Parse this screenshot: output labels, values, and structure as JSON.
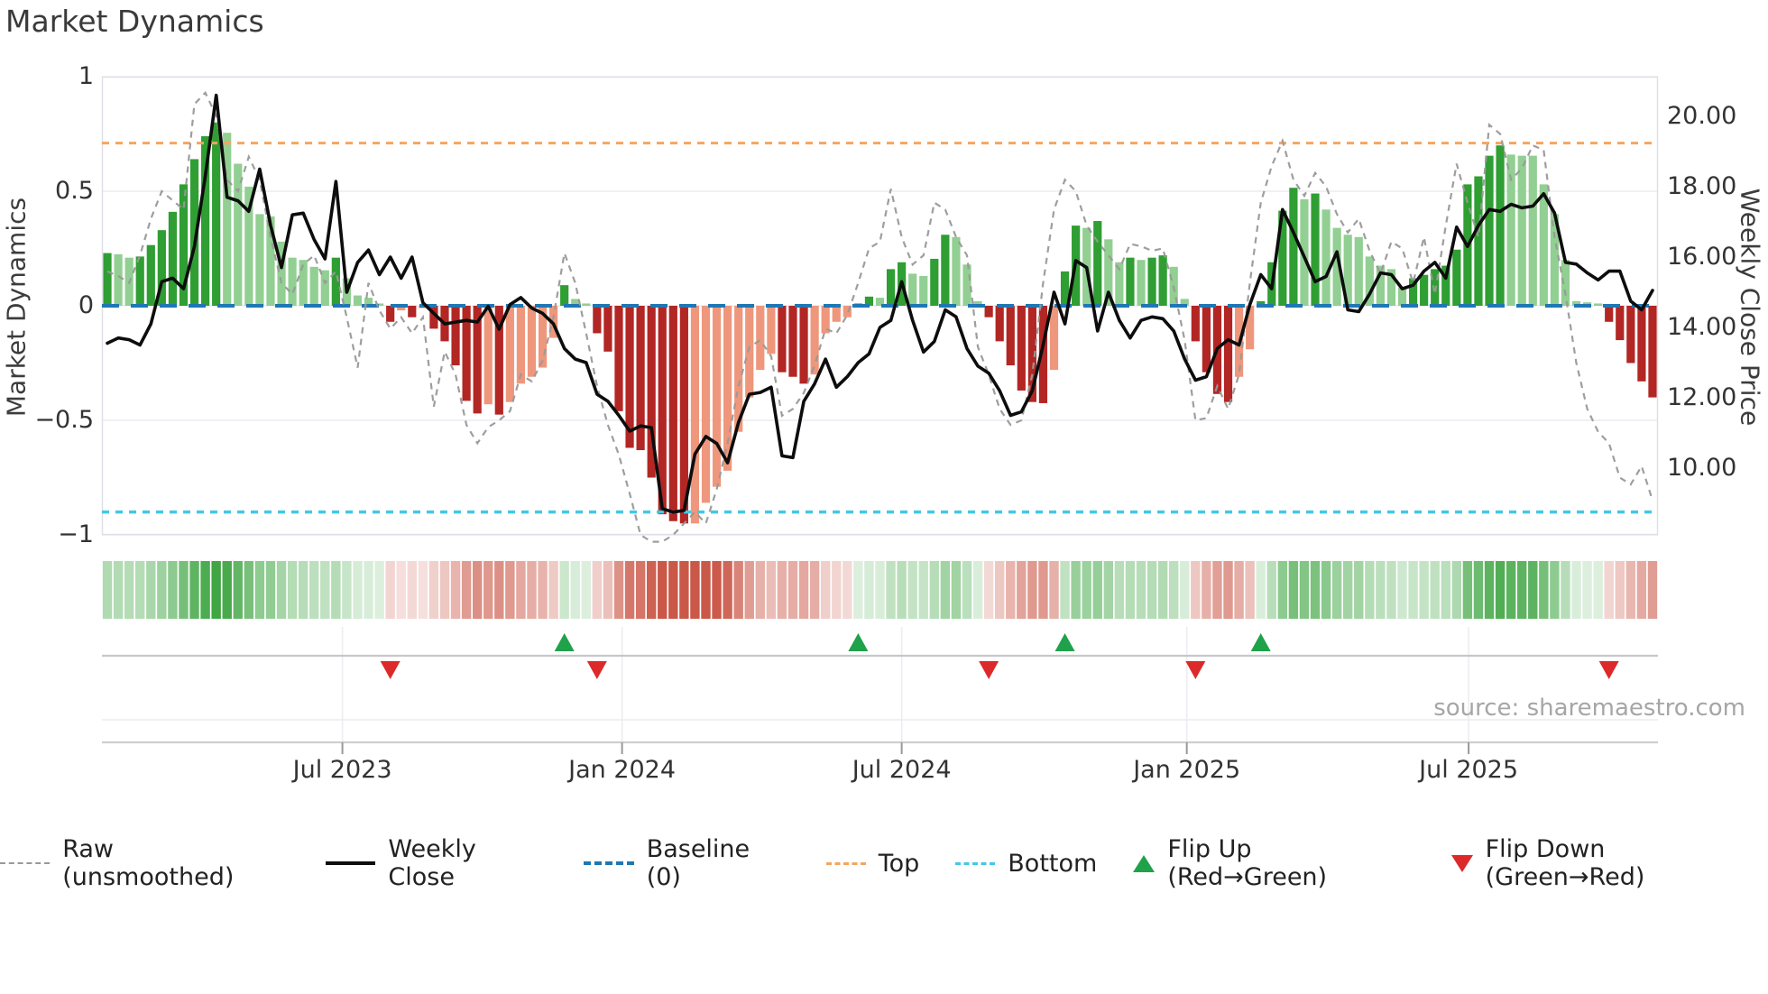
{
  "title": "Market Dynamics",
  "source_credit": "source: sharemaestro.com",
  "axes": {
    "left_label": "Market Dynamics",
    "right_label": "Weekly Close Price",
    "left_ticks": [
      {
        "label": "1",
        "value": 1
      },
      {
        "label": "0.5",
        "value": 0.5
      },
      {
        "label": "0",
        "value": 0
      },
      {
        "label": "−0.5",
        "value": -0.5
      },
      {
        "label": "−1",
        "value": -1
      }
    ],
    "right_ticks": [
      {
        "label": "20.00",
        "value": 20
      },
      {
        "label": "18.00",
        "value": 18
      },
      {
        "label": "16.00",
        "value": 16
      },
      {
        "label": "14.00",
        "value": 14
      },
      {
        "label": "12.00",
        "value": 12
      },
      {
        "label": "10.00",
        "value": 10
      }
    ],
    "x_ticks": [
      {
        "label": "Jul 2023",
        "week": 22.1
      },
      {
        "label": "Jan 2024",
        "week": 47.8
      },
      {
        "label": "Jul 2024",
        "week": 73.5
      },
      {
        "label": "Jan 2025",
        "week": 99.7
      },
      {
        "label": "Jul 2025",
        "week": 125.6
      }
    ]
  },
  "legend": [
    {
      "id": "raw",
      "label": "Raw (unsmoothed)"
    },
    {
      "id": "close",
      "label": "Weekly Close"
    },
    {
      "id": "baseline",
      "label": "Baseline (0)"
    },
    {
      "id": "top",
      "label": "Top"
    },
    {
      "id": "bottom",
      "label": "Bottom"
    },
    {
      "id": "flip-up",
      "label": "Flip Up (Red→Green)"
    },
    {
      "id": "flip-down",
      "label": "Flip Down (Green→Red)"
    }
  ],
  "colors": {
    "bar_green_dark": "#2F9E33",
    "bar_green_light": "#92CF92",
    "bar_red_dark": "#B22624",
    "bar_red_light": "#EF977C",
    "close_line": "#0d0d0d",
    "raw_line": "#999999",
    "baseline": "#1f77b4",
    "top_line": "#F5A55F",
    "bottom_line": "#44C8E6",
    "flip_up": "#1FA24A",
    "flip_down": "#DC2A2A",
    "heat_pos": "#2F9E33",
    "heat_neg": "#C64A38",
    "grid": "#ECECF2",
    "spine": "#E0E0E8",
    "panel_line": "#C6C6CC",
    "axis_line": "#CFCFCF",
    "tick_text": "#333333",
    "title_text": "#3A3A3A"
  },
  "chart_data": {
    "type": "combo-bar-line",
    "weeks": 143,
    "ylim_left": [
      -1,
      1
    ],
    "thresholds": {
      "baseline": 0,
      "top": 0.71,
      "bottom": -0.9
    },
    "flip_up_weeks": [
      43,
      70,
      89,
      107
    ],
    "flip_down_weeks": [
      27,
      46,
      82,
      101,
      139
    ],
    "oscillator": [
      0.23,
      0.225,
      0.21,
      0.215,
      0.265,
      0.33,
      0.41,
      0.53,
      0.64,
      0.74,
      0.8,
      0.755,
      0.62,
      0.52,
      0.4,
      0.39,
      0.28,
      0.21,
      0.2,
      0.17,
      0.155,
      0.21,
      0.12,
      0.045,
      0.035,
      0.01,
      -0.07,
      -0.02,
      -0.05,
      -0.01,
      -0.1,
      -0.155,
      -0.26,
      -0.415,
      -0.47,
      -0.43,
      -0.475,
      -0.42,
      -0.34,
      -0.31,
      -0.27,
      -0.14,
      0.09,
      0.03,
      0.01,
      -0.12,
      -0.2,
      -0.46,
      -0.62,
      -0.63,
      -0.75,
      -0.91,
      -0.94,
      -0.95,
      -0.95,
      -0.86,
      -0.79,
      -0.72,
      -0.55,
      -0.4,
      -0.28,
      -0.21,
      -0.29,
      -0.31,
      -0.34,
      -0.3,
      -0.12,
      -0.07,
      -0.05,
      0.01,
      0.04,
      0.035,
      0.16,
      0.19,
      0.14,
      0.13,
      0.205,
      0.31,
      0.3,
      0.18,
      0.02,
      -0.05,
      -0.155,
      -0.26,
      -0.37,
      -0.42,
      -0.425,
      -0.28,
      0.15,
      0.35,
      0.34,
      0.37,
      0.29,
      0.19,
      0.21,
      0.2,
      0.21,
      0.22,
      0.17,
      0.03,
      -0.155,
      -0.29,
      -0.385,
      -0.42,
      -0.31,
      -0.19,
      0.02,
      0.19,
      0.415,
      0.515,
      0.465,
      0.49,
      0.42,
      0.34,
      0.31,
      0.3,
      0.215,
      0.175,
      0.16,
      0.08,
      0.12,
      0.135,
      0.16,
      0.175,
      0.245,
      0.53,
      0.565,
      0.655,
      0.7,
      0.66,
      0.655,
      0.655,
      0.53,
      0.4,
      0.2,
      0.02,
      0.015,
      0.01,
      -0.07,
      -0.15,
      -0.25,
      -0.33,
      -0.4
    ],
    "raw": [
      0.15,
      0.13,
      0.1,
      0.22,
      0.38,
      0.5,
      0.46,
      0.42,
      0.88,
      0.93,
      0.83,
      0.55,
      0.5,
      0.65,
      0.55,
      0.3,
      0.1,
      0.05,
      0.18,
      0.22,
      0.1,
      0.15,
      -0.05,
      -0.27,
      0.1,
      -0.02,
      -0.1,
      -0.05,
      -0.12,
      -0.05,
      -0.44,
      -0.2,
      -0.3,
      -0.52,
      -0.6,
      -0.53,
      -0.5,
      -0.46,
      -0.3,
      -0.33,
      -0.24,
      -0.05,
      0.23,
      0.1,
      -0.12,
      -0.35,
      -0.52,
      -0.65,
      -0.82,
      -1.0,
      -1.03,
      -1.03,
      -1.0,
      -0.95,
      -0.9,
      -0.95,
      -0.8,
      -0.6,
      -0.35,
      -0.18,
      -0.15,
      -0.22,
      -0.48,
      -0.45,
      -0.38,
      -0.26,
      -0.1,
      -0.12,
      -0.04,
      0.1,
      0.25,
      0.28,
      0.51,
      0.3,
      0.18,
      0.22,
      0.45,
      0.42,
      0.3,
      0.22,
      -0.18,
      -0.3,
      -0.45,
      -0.52,
      -0.5,
      -0.3,
      0.1,
      0.42,
      0.55,
      0.5,
      0.35,
      0.28,
      0.22,
      0.16,
      0.27,
      0.26,
      0.24,
      0.25,
      0.08,
      -0.15,
      -0.5,
      -0.49,
      -0.35,
      -0.45,
      -0.3,
      0.1,
      0.45,
      0.61,
      0.72,
      0.55,
      0.48,
      0.58,
      0.52,
      0.4,
      0.32,
      0.38,
      0.24,
      0.14,
      0.28,
      0.25,
      0.1,
      0.3,
      0.05,
      0.35,
      0.62,
      0.45,
      0.3,
      0.79,
      0.75,
      0.55,
      0.6,
      0.7,
      0.68,
      0.3,
      0.05,
      -0.25,
      -0.45,
      -0.55,
      -0.6,
      -0.75,
      -0.78,
      -0.7,
      -0.85
    ],
    "weekly_close": [
      13.55,
      13.7,
      13.65,
      13.5,
      14.1,
      15.3,
      15.4,
      15.1,
      16.3,
      18.3,
      20.6,
      17.7,
      17.6,
      17.3,
      18.5,
      16.9,
      15.7,
      17.2,
      17.25,
      16.5,
      15.95,
      18.15,
      15.0,
      15.85,
      16.2,
      15.5,
      16.0,
      15.4,
      16.0,
      14.7,
      14.4,
      14.1,
      14.15,
      14.2,
      14.15,
      14.6,
      13.95,
      14.65,
      14.85,
      14.55,
      14.4,
      14.1,
      13.4,
      13.1,
      13.0,
      12.1,
      11.9,
      11.5,
      11.05,
      11.2,
      11.15,
      8.85,
      8.75,
      8.8,
      10.4,
      10.9,
      10.7,
      10.15,
      11.3,
      12.1,
      12.15,
      12.3,
      10.35,
      10.3,
      11.9,
      12.4,
      13.1,
      12.3,
      12.6,
      13.0,
      13.25,
      14.0,
      14.2,
      15.3,
      14.2,
      13.3,
      13.6,
      14.5,
      14.3,
      13.4,
      12.9,
      12.7,
      12.2,
      11.5,
      11.6,
      12.2,
      13.5,
      15.0,
      14.1,
      15.9,
      15.7,
      13.9,
      15.0,
      14.2,
      13.7,
      14.2,
      14.3,
      14.25,
      13.9,
      13.1,
      12.5,
      12.6,
      13.4,
      13.65,
      13.5,
      14.65,
      15.5,
      15.1,
      17.35,
      16.7,
      16.0,
      15.3,
      15.45,
      16.15,
      14.5,
      14.45,
      14.95,
      15.55,
      15.5,
      15.1,
      15.2,
      15.6,
      15.85,
      15.4,
      16.85,
      16.3,
      16.9,
      17.35,
      17.3,
      17.5,
      17.4,
      17.45,
      17.8,
      17.25,
      15.85,
      15.8,
      15.55,
      15.35,
      15.6,
      15.6,
      14.75,
      14.5,
      15.05
    ]
  }
}
